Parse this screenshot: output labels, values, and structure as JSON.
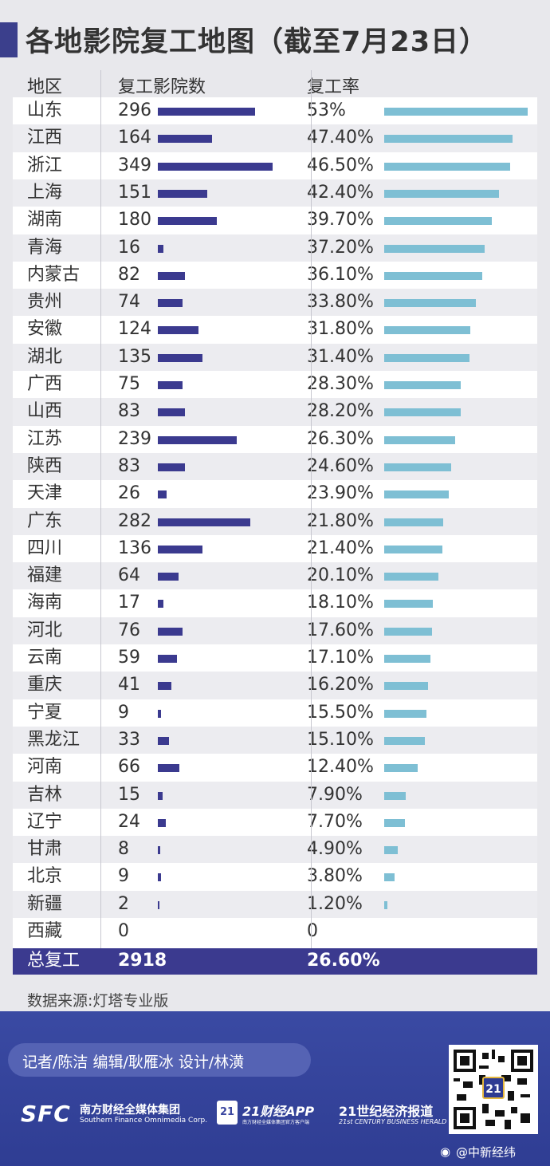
{
  "title": "各地影院复工地图（截至7月23日）",
  "headers": {
    "region": "地区",
    "cinemas": "复工影院数",
    "rate": "复工率"
  },
  "chart_data": {
    "type": "table",
    "columns": [
      "地区",
      "复工影院数",
      "复工率"
    ],
    "rows": [
      {
        "region": "山东",
        "cinemas": 296,
        "rate": 53.0,
        "rate_label": "53%"
      },
      {
        "region": "江西",
        "cinemas": 164,
        "rate": 47.4,
        "rate_label": "47.40%"
      },
      {
        "region": "浙江",
        "cinemas": 349,
        "rate": 46.5,
        "rate_label": "46.50%"
      },
      {
        "region": "上海",
        "cinemas": 151,
        "rate": 42.4,
        "rate_label": "42.40%"
      },
      {
        "region": "湖南",
        "cinemas": 180,
        "rate": 39.7,
        "rate_label": "39.70%"
      },
      {
        "region": "青海",
        "cinemas": 16,
        "rate": 37.2,
        "rate_label": "37.20%"
      },
      {
        "region": "内蒙古",
        "cinemas": 82,
        "rate": 36.1,
        "rate_label": "36.10%"
      },
      {
        "region": "贵州",
        "cinemas": 74,
        "rate": 33.8,
        "rate_label": "33.80%"
      },
      {
        "region": "安徽",
        "cinemas": 124,
        "rate": 31.8,
        "rate_label": "31.80%"
      },
      {
        "region": "湖北",
        "cinemas": 135,
        "rate": 31.4,
        "rate_label": "31.40%"
      },
      {
        "region": "广西",
        "cinemas": 75,
        "rate": 28.3,
        "rate_label": "28.30%"
      },
      {
        "region": "山西",
        "cinemas": 83,
        "rate": 28.2,
        "rate_label": "28.20%"
      },
      {
        "region": "江苏",
        "cinemas": 239,
        "rate": 26.3,
        "rate_label": "26.30%"
      },
      {
        "region": "陕西",
        "cinemas": 83,
        "rate": 24.6,
        "rate_label": "24.60%"
      },
      {
        "region": "天津",
        "cinemas": 26,
        "rate": 23.9,
        "rate_label": "23.90%"
      },
      {
        "region": "广东",
        "cinemas": 282,
        "rate": 21.8,
        "rate_label": "21.80%"
      },
      {
        "region": "四川",
        "cinemas": 136,
        "rate": 21.4,
        "rate_label": "21.40%"
      },
      {
        "region": "福建",
        "cinemas": 64,
        "rate": 20.1,
        "rate_label": "20.10%"
      },
      {
        "region": "海南",
        "cinemas": 17,
        "rate": 18.1,
        "rate_label": "18.10%"
      },
      {
        "region": "河北",
        "cinemas": 76,
        "rate": 17.6,
        "rate_label": "17.60%"
      },
      {
        "region": "云南",
        "cinemas": 59,
        "rate": 17.1,
        "rate_label": "17.10%"
      },
      {
        "region": "重庆",
        "cinemas": 41,
        "rate": 16.2,
        "rate_label": "16.20%"
      },
      {
        "region": "宁夏",
        "cinemas": 9,
        "rate": 15.5,
        "rate_label": "15.50%"
      },
      {
        "region": "黑龙江",
        "cinemas": 33,
        "rate": 15.1,
        "rate_label": "15.10%"
      },
      {
        "region": "河南",
        "cinemas": 66,
        "rate": 12.4,
        "rate_label": "12.40%"
      },
      {
        "region": "吉林",
        "cinemas": 15,
        "rate": 7.9,
        "rate_label": "7.90%"
      },
      {
        "region": "辽宁",
        "cinemas": 24,
        "rate": 7.7,
        "rate_label": "7.70%"
      },
      {
        "region": "甘肃",
        "cinemas": 8,
        "rate": 4.9,
        "rate_label": "4.90%"
      },
      {
        "region": "北京",
        "cinemas": 9,
        "rate": 3.8,
        "rate_label": "3.80%"
      },
      {
        "region": "新疆",
        "cinemas": 2,
        "rate": 1.2,
        "rate_label": "1.20%"
      },
      {
        "region": "西藏",
        "cinemas": 0,
        "rate": 0,
        "rate_label": "0"
      }
    ],
    "total": {
      "label": "总复工",
      "cinemas": "2918",
      "rate": "26.60%"
    }
  },
  "source": "数据来源:灯塔专业版",
  "footer": {
    "credits": "记者/陈洁   编辑/耿雁冰   设计/林潢",
    "sfc_logo": "SFC",
    "sfc_name": "南方财经全媒体集团",
    "sfc_en": "Southern Finance Omnimedia Corp.",
    "app_badge": "21",
    "app_name": "21财经APP",
    "app_sub": "南方财经全媒体集团官方客户端",
    "herald_name": "21世纪经济报道",
    "herald_en": "21st CENTURY BUSINESS HERALD",
    "qr_badge": "21",
    "weibo": "@中新经纬"
  },
  "colors": {
    "accent": "#3b3f8c",
    "cinema_bar": "#3b3a8f",
    "rate_bar": "#7ebfd4",
    "footer": "#3b47a0"
  },
  "icons": {
    "weibo": "weibo-icon",
    "qr": "qr-code-icon"
  }
}
